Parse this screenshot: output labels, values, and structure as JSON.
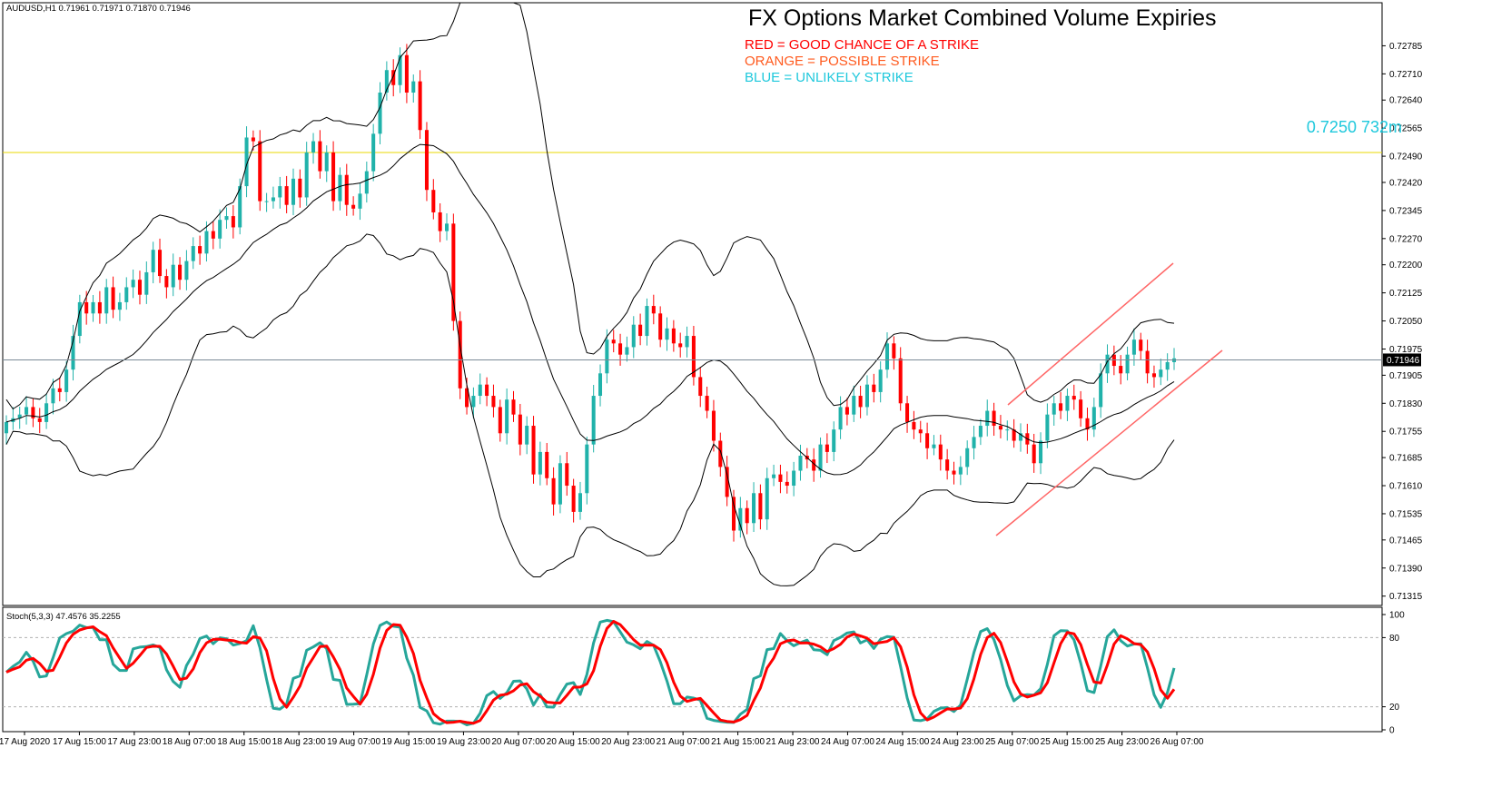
{
  "chart_data": [
    {
      "type": "candlestick",
      "symbol_header": "AUDUSD,H1  0.71961 0.71971 0.71870 0.71946",
      "title": "FX Options Market Combined Volume Expiries",
      "legend": [
        {
          "text": "RED = GOOD CHANCE OF A STRIKE",
          "color": "#ff0000"
        },
        {
          "text": "ORANGE = POSSIBLE STRIKE",
          "color": "#ff5a1e"
        },
        {
          "text": "BLUE = UNLIKELY STRIKE",
          "color": "#1ec8dc"
        }
      ],
      "ylim": [
        0.7129,
        0.729
      ],
      "y_ticks": [
        "0.72785",
        "0.72710",
        "0.72640",
        "0.72565",
        "0.72490",
        "0.72420",
        "0.72345",
        "0.72270",
        "0.72200",
        "0.72125",
        "0.72050",
        "0.71975",
        "0.71905",
        "0.71830",
        "0.71755",
        "0.71685",
        "0.71610",
        "0.71535",
        "0.71465",
        "0.71390",
        "0.71315"
      ],
      "x_ticks": [
        "17 Aug 2020",
        "17 Aug 15:00",
        "17 Aug 23:00",
        "18 Aug 07:00",
        "18 Aug 15:00",
        "18 Aug 23:00",
        "19 Aug 07:00",
        "19 Aug 15:00",
        "19 Aug 23:00",
        "20 Aug 07:00",
        "20 Aug 15:00",
        "20 Aug 23:00",
        "21 Aug 07:00",
        "21 Aug 15:00",
        "21 Aug 23:00",
        "24 Aug 07:00",
        "24 Aug 15:00",
        "24 Aug 23:00",
        "25 Aug 07:00",
        "25 Aug 15:00",
        "25 Aug 23:00",
        "26 Aug 07:00"
      ],
      "current_price": "0.71946",
      "current_price_value": 0.71946,
      "level": {
        "label": "0.7250 732m",
        "value": 0.725,
        "color": "#1ec8dc"
      },
      "ohlc_closes": [
        0.7178,
        0.7179,
        0.718,
        0.7182,
        0.7179,
        0.7178,
        0.7183,
        0.7187,
        0.7186,
        0.7192,
        0.7201,
        0.721,
        0.7207,
        0.721,
        0.7207,
        0.7214,
        0.7208,
        0.721,
        0.7214,
        0.7216,
        0.7212,
        0.7218,
        0.7224,
        0.7217,
        0.7214,
        0.722,
        0.7216,
        0.7221,
        0.7225,
        0.7223,
        0.7229,
        0.7227,
        0.7232,
        0.7233,
        0.723,
        0.7241,
        0.7254,
        0.7253,
        0.7237,
        0.7237,
        0.7238,
        0.7241,
        0.7236,
        0.7243,
        0.7238,
        0.725,
        0.7253,
        0.7245,
        0.725,
        0.7237,
        0.7244,
        0.7236,
        0.7235,
        0.7239,
        0.7245,
        0.7255,
        0.7266,
        0.7272,
        0.7268,
        0.7276,
        0.7266,
        0.7269,
        0.7256,
        0.724,
        0.7234,
        0.7229,
        0.7231,
        0.7205,
        0.7187,
        0.7182,
        0.7185,
        0.7188,
        0.7185,
        0.7182,
        0.7175,
        0.7184,
        0.718,
        0.7172,
        0.7177,
        0.7164,
        0.717,
        0.7163,
        0.7156,
        0.7167,
        0.7161,
        0.7154,
        0.7159,
        0.7172,
        0.7185,
        0.7191,
        0.72,
        0.7199,
        0.7196,
        0.7198,
        0.7204,
        0.7201,
        0.7209,
        0.7207,
        0.72,
        0.7203,
        0.7199,
        0.7198,
        0.7201,
        0.719,
        0.7185,
        0.7181,
        0.7173,
        0.7166,
        0.7158,
        0.7149,
        0.7155,
        0.7151,
        0.7159,
        0.7152,
        0.7163,
        0.7164,
        0.7162,
        0.7161,
        0.7165,
        0.7169,
        0.7168,
        0.7165,
        0.7172,
        0.717,
        0.7176,
        0.7182,
        0.718,
        0.7185,
        0.7182,
        0.7188,
        0.7186,
        0.7192,
        0.7199,
        0.7195,
        0.7183,
        0.7178,
        0.7176,
        0.7175,
        0.7171,
        0.7172,
        0.7168,
        0.7165,
        0.7164,
        0.7166,
        0.7171,
        0.7174,
        0.7177,
        0.7181,
        0.7177,
        0.7176,
        0.7176,
        0.7173,
        0.7175,
        0.7172,
        0.7167,
        0.7173,
        0.718,
        0.7183,
        0.7181,
        0.7185,
        0.7184,
        0.7179,
        0.7176,
        0.7182,
        0.7191,
        0.7196,
        0.7193,
        0.7191,
        0.7196,
        0.72,
        0.7197,
        0.7191,
        0.719,
        0.7192,
        0.7194,
        0.7195
      ],
      "stochastic": {
        "label": "Stoch(5,3,3) 47.4576 35.2255",
        "ylim": [
          0,
          100
        ],
        "y_ticks": [
          "100",
          "80",
          "20",
          "0"
        ],
        "main_color": "#26a69a",
        "signal_color": "#ff0000"
      },
      "bull_color": "#20b2aa",
      "bear_color": "#ff0000"
    }
  ]
}
